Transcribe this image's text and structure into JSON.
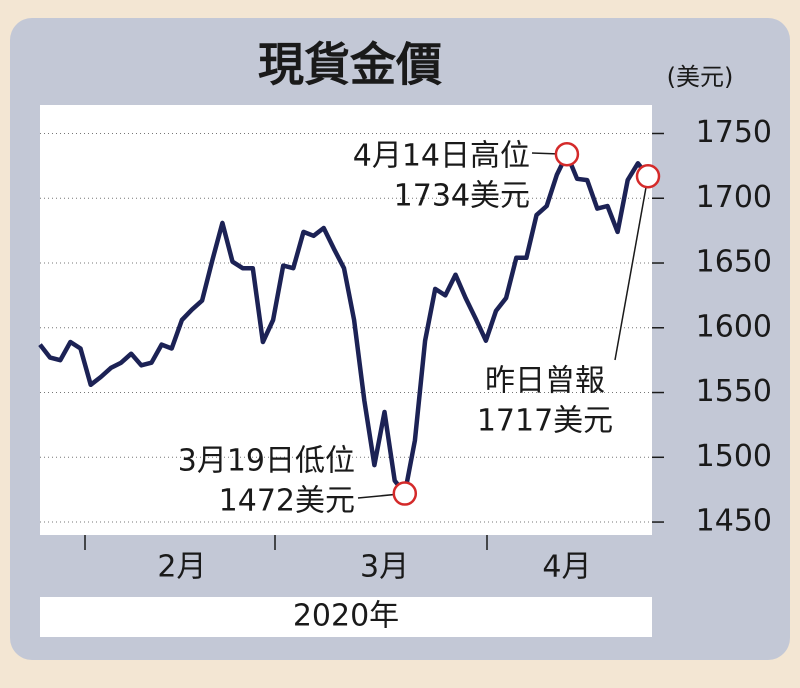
{
  "chart_data": {
    "type": "line",
    "title": "現貨金價",
    "y_unit": "(美元)",
    "x_label": "2020年",
    "categories": [
      null,
      null,
      null,
      null,
      null,
      null,
      null,
      null,
      null,
      null,
      null,
      null,
      null,
      null,
      "2月",
      null,
      null,
      null,
      null,
      null,
      null,
      null,
      null,
      null,
      null,
      null,
      null,
      null,
      null,
      null,
      null,
      null,
      null,
      null,
      "3月",
      null,
      null,
      null,
      null,
      null,
      null,
      null,
      null,
      null,
      null,
      null,
      null,
      null,
      null,
      null,
      null,
      null,
      "4月",
      null,
      null,
      null,
      null,
      null,
      null,
      null,
      null
    ],
    "series": [
      {
        "name": "現貨金價",
        "color": "#1c2255",
        "values": [
          1587,
          1577,
          1575,
          1589,
          1584,
          1556,
          1562,
          1569,
          1573,
          1580,
          1571,
          1573,
          1587,
          1584,
          1606,
          1614,
          1621,
          1652,
          1681,
          1651,
          1646,
          1646,
          1589,
          1606,
          1648,
          1646,
          1674,
          1671,
          1677,
          1661,
          1646,
          1606,
          1544,
          1494,
          1535,
          1482,
          1472,
          1513,
          1590,
          1630,
          1625,
          1641,
          1623,
          1607,
          1590,
          1613,
          1623,
          1654,
          1654,
          1687,
          1694,
          1718,
          1734,
          1715,
          1714,
          1692,
          1694,
          1674,
          1714,
          1727,
          1717
        ]
      }
    ],
    "ylim": [
      1440,
      1772
    ],
    "yticks": [
      1450,
      1500,
      1550,
      1600,
      1650,
      1700,
      1750
    ],
    "grid": true,
    "annotations": [
      {
        "lines": [
          "4月14日高位",
          "1734美元"
        ],
        "index": 52
      },
      {
        "lines": [
          "3月19日低位",
          "1472美元"
        ],
        "index": 36
      },
      {
        "lines": [
          "昨日曾報",
          "1717美元"
        ],
        "index": 60
      }
    ]
  }
}
